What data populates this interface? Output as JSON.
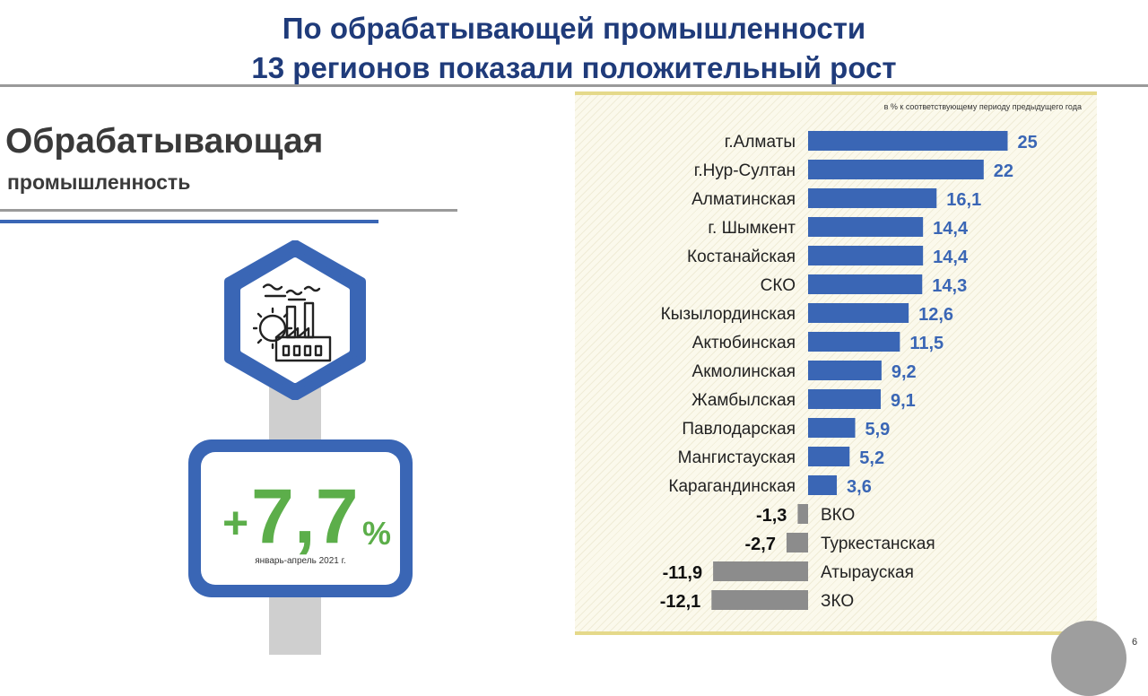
{
  "slide": {
    "title_line1": "По обрабатывающей промышленности",
    "title_line2": "13 регионов показали положительный рост",
    "heading": "Обрабатывающая",
    "subheading": "промышленность",
    "result": {
      "plus": "+",
      "number": "7,7",
      "percent": "%",
      "period": "январь-апрель 2021 г."
    },
    "page_number": "6",
    "icon": "factory-icon"
  },
  "colors": {
    "title": "#1f3b7a",
    "positive_bar": "#3a66b5",
    "negative_bar": "#8c8c8c",
    "accent_green": "#5cae4a"
  },
  "chart_data": {
    "type": "bar",
    "orientation": "horizontal",
    "note": "в % к соответствующему периоду предыдущего года",
    "categories": [
      "г.Алматы",
      "г.Нур-Султан",
      "Алматинская",
      "г. Шымкент",
      "Костанайская",
      "СКО",
      "Кызылординская",
      "Актюбинская",
      "Акмолинская",
      "Жамбылская",
      "Павлодарская",
      "Мангистауская",
      "Карагандинская",
      "ВКО",
      "Туркестанская",
      "Атырауская",
      "ЗКО"
    ],
    "values": [
      25,
      22,
      16.1,
      14.4,
      14.4,
      14.3,
      12.6,
      11.5,
      9.2,
      9.1,
      5.9,
      5.2,
      3.6,
      -1.3,
      -2.7,
      -11.9,
      -12.1
    ],
    "value_labels": [
      "25",
      "22",
      "16,1",
      "14,4",
      "14,4",
      "14,3",
      "12,6",
      "11,5",
      "9,2",
      "9,1",
      "5,9",
      "5,2",
      "3,6",
      "-1,3",
      "-2,7",
      "-11,9",
      "-12,1"
    ]
  }
}
